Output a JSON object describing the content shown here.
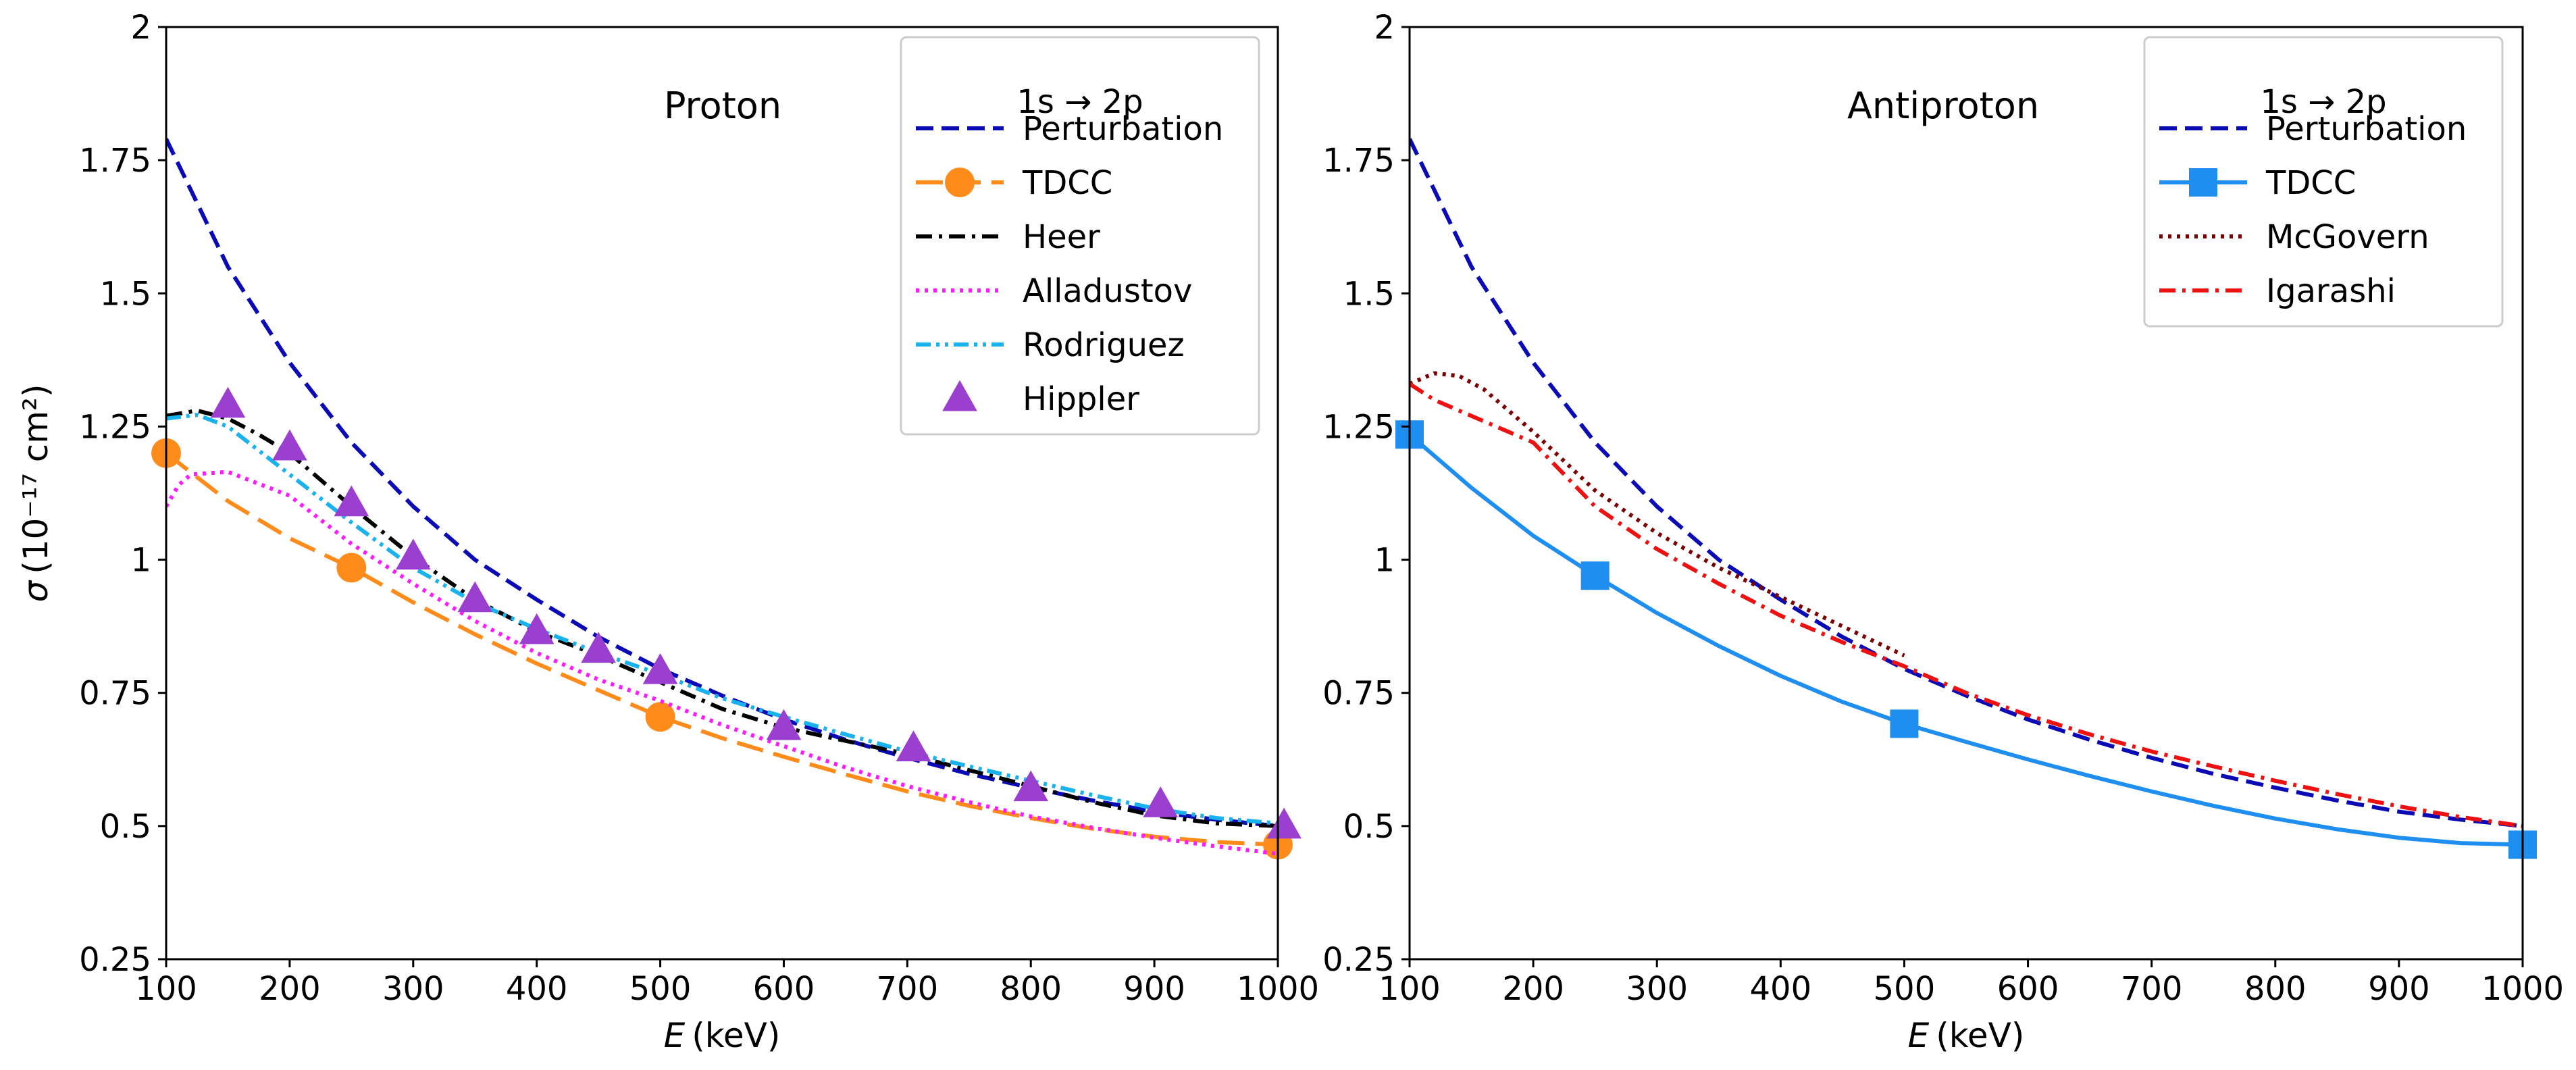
{
  "chart_data": [
    {
      "type": "line",
      "panel_label": "Proton",
      "xlabel_var": "E",
      "xlabel_unit": "(keV)",
      "ylabel_var": "σ",
      "ylabel_unit": "(10⁻¹⁷ cm²)",
      "xlim": [
        100,
        1000
      ],
      "ylim": [
        0.25,
        2.0
      ],
      "xticks": [
        100,
        200,
        300,
        400,
        500,
        600,
        700,
        800,
        900,
        1000
      ],
      "xtick_labels": [
        "100",
        "200",
        "300",
        "400",
        "500",
        "600",
        "700",
        "800",
        "900",
        "1000"
      ],
      "yticks": [
        0.25,
        0.5,
        0.75,
        1.0,
        1.25,
        1.5,
        1.75,
        2.0
      ],
      "ytick_labels": [
        "0.25",
        "0.5",
        "0.75",
        "1",
        "1.25",
        "1.5",
        "1.75",
        "2"
      ],
      "legend_title": "1s → 2p",
      "legend_loc": "upper right",
      "series": [
        {
          "name": "Perturbation",
          "color": "#0b0bb5",
          "style": "dashed",
          "x": [
            100,
            150,
            200,
            250,
            300,
            350,
            400,
            450,
            500,
            550,
            600,
            650,
            700,
            750,
            800,
            850,
            900,
            950,
            1000
          ],
          "y": [
            1.79,
            1.55,
            1.37,
            1.22,
            1.1,
            1.0,
            0.925,
            0.855,
            0.795,
            0.745,
            0.7,
            0.662,
            0.628,
            0.598,
            0.572,
            0.548,
            0.527,
            0.512,
            0.5
          ]
        },
        {
          "name": "TDCC",
          "color": "#ff8c1a",
          "style": "longdash",
          "marker": "circle",
          "x": [
            100,
            150,
            200,
            250,
            300,
            350,
            400,
            450,
            500,
            550,
            600,
            650,
            700,
            750,
            800,
            850,
            900,
            950,
            1000
          ],
          "y": [
            1.2,
            1.11,
            1.04,
            0.985,
            0.92,
            0.86,
            0.805,
            0.755,
            0.705,
            0.665,
            0.63,
            0.597,
            0.565,
            0.538,
            0.515,
            0.495,
            0.48,
            0.47,
            0.465
          ],
          "marker_x": [
            100,
            250,
            500,
            1000
          ],
          "marker_y": [
            1.2,
            0.985,
            0.705,
            0.465
          ]
        },
        {
          "name": "Heer",
          "color": "#000000",
          "style": "dashdot",
          "x": [
            100,
            125,
            150,
            175,
            200,
            250,
            300,
            350,
            400,
            450,
            500,
            550,
            600,
            650,
            700,
            750,
            800,
            850,
            900,
            950,
            1000
          ],
          "y": [
            1.27,
            1.28,
            1.265,
            1.235,
            1.2,
            1.1,
            1.005,
            0.925,
            0.865,
            0.82,
            0.77,
            0.72,
            0.685,
            0.66,
            0.635,
            0.605,
            0.575,
            0.545,
            0.52,
            0.505,
            0.5
          ]
        },
        {
          "name": "Alladustov",
          "color": "#ff1aff",
          "style": "dotted",
          "x": [
            100,
            110,
            120,
            150,
            200,
            250,
            300,
            350,
            400,
            450,
            500,
            550,
            600,
            650,
            700,
            750,
            800,
            850,
            900,
            950,
            1000
          ],
          "y": [
            1.1,
            1.14,
            1.16,
            1.165,
            1.12,
            1.03,
            0.955,
            0.885,
            0.825,
            0.775,
            0.735,
            0.69,
            0.65,
            0.61,
            0.575,
            0.545,
            0.518,
            0.497,
            0.478,
            0.462,
            0.448
          ]
        },
        {
          "name": "Rodriguez",
          "color": "#1ab2ec",
          "style": "dashdotdot",
          "x": [
            100,
            125,
            150,
            200,
            250,
            300,
            350,
            400,
            450,
            500,
            550,
            600,
            650,
            700,
            750,
            800,
            850,
            900,
            950,
            1000
          ],
          "y": [
            1.265,
            1.272,
            1.25,
            1.16,
            1.07,
            0.985,
            0.92,
            0.87,
            0.825,
            0.785,
            0.74,
            0.705,
            0.672,
            0.64,
            0.612,
            0.585,
            0.558,
            0.533,
            0.515,
            0.505
          ]
        },
        {
          "name": "Hippler",
          "color": "#9a3fd0",
          "style": "none",
          "marker": "triangle",
          "x": [
            150,
            200,
            250,
            300,
            350,
            400,
            450,
            500,
            600,
            705,
            800,
            905,
            1005
          ],
          "y": [
            1.29,
            1.21,
            1.105,
            1.005,
            0.925,
            0.865,
            0.83,
            0.79,
            0.685,
            0.645,
            0.57,
            0.54,
            0.5
          ]
        }
      ]
    },
    {
      "type": "line",
      "panel_label": "Antiproton",
      "xlabel_var": "E",
      "xlabel_unit": "(keV)",
      "ylabel_var": "",
      "ylabel_unit": "",
      "xlim": [
        100,
        1000
      ],
      "ylim": [
        0.25,
        2.0
      ],
      "xticks": [
        100,
        200,
        300,
        400,
        500,
        600,
        700,
        800,
        900,
        1000
      ],
      "xtick_labels": [
        "100",
        "200",
        "300",
        "400",
        "500",
        "600",
        "700",
        "800",
        "900",
        "1000"
      ],
      "yticks": [
        0.25,
        0.5,
        0.75,
        1.0,
        1.25,
        1.5,
        1.75,
        2.0
      ],
      "ytick_labels": [
        "0.25",
        "0.5",
        "0.75",
        "1",
        "1.25",
        "1.5",
        "1.75",
        "2"
      ],
      "legend_title": "1s → 2p",
      "legend_loc": "upper right",
      "series": [
        {
          "name": "Perturbation",
          "color": "#0b0bb5",
          "style": "dashed",
          "x": [
            100,
            150,
            200,
            250,
            300,
            350,
            400,
            450,
            500,
            550,
            600,
            650,
            700,
            750,
            800,
            850,
            900,
            950,
            1000
          ],
          "y": [
            1.79,
            1.55,
            1.37,
            1.22,
            1.1,
            1.0,
            0.925,
            0.855,
            0.795,
            0.745,
            0.7,
            0.662,
            0.628,
            0.598,
            0.572,
            0.548,
            0.527,
            0.512,
            0.5
          ]
        },
        {
          "name": "TDCC",
          "color": "#1f8ef1",
          "style": "solid",
          "marker": "square",
          "x": [
            100,
            150,
            200,
            250,
            300,
            350,
            400,
            450,
            500,
            550,
            600,
            650,
            700,
            750,
            800,
            850,
            900,
            950,
            1000
          ],
          "y": [
            1.235,
            1.135,
            1.045,
            0.97,
            0.9,
            0.838,
            0.782,
            0.733,
            0.692,
            0.658,
            0.625,
            0.594,
            0.565,
            0.538,
            0.514,
            0.494,
            0.478,
            0.468,
            0.465
          ],
          "marker_x": [
            100,
            250,
            500,
            1000
          ],
          "marker_y": [
            1.235,
            0.97,
            0.692,
            0.465
          ]
        },
        {
          "name": "McGovern",
          "color": "#7a0000",
          "style": "dotted",
          "x": [
            100,
            120,
            140,
            160,
            200,
            250,
            300,
            350,
            400,
            450,
            500
          ],
          "y": [
            1.33,
            1.35,
            1.345,
            1.32,
            1.24,
            1.13,
            1.05,
            0.985,
            0.93,
            0.875,
            0.82
          ]
        },
        {
          "name": "Igarashi",
          "color": "#ee1111",
          "style": "dashdot",
          "x": [
            100,
            120,
            150,
            200,
            250,
            300,
            350,
            400,
            450,
            500,
            550,
            600,
            650,
            700,
            750,
            800,
            850,
            900,
            950,
            1000
          ],
          "y": [
            1.33,
            1.3,
            1.27,
            1.22,
            1.1,
            1.02,
            0.955,
            0.895,
            0.845,
            0.8,
            0.75,
            0.708,
            0.672,
            0.64,
            0.612,
            0.585,
            0.56,
            0.537,
            0.517,
            0.5
          ]
        }
      ]
    }
  ]
}
